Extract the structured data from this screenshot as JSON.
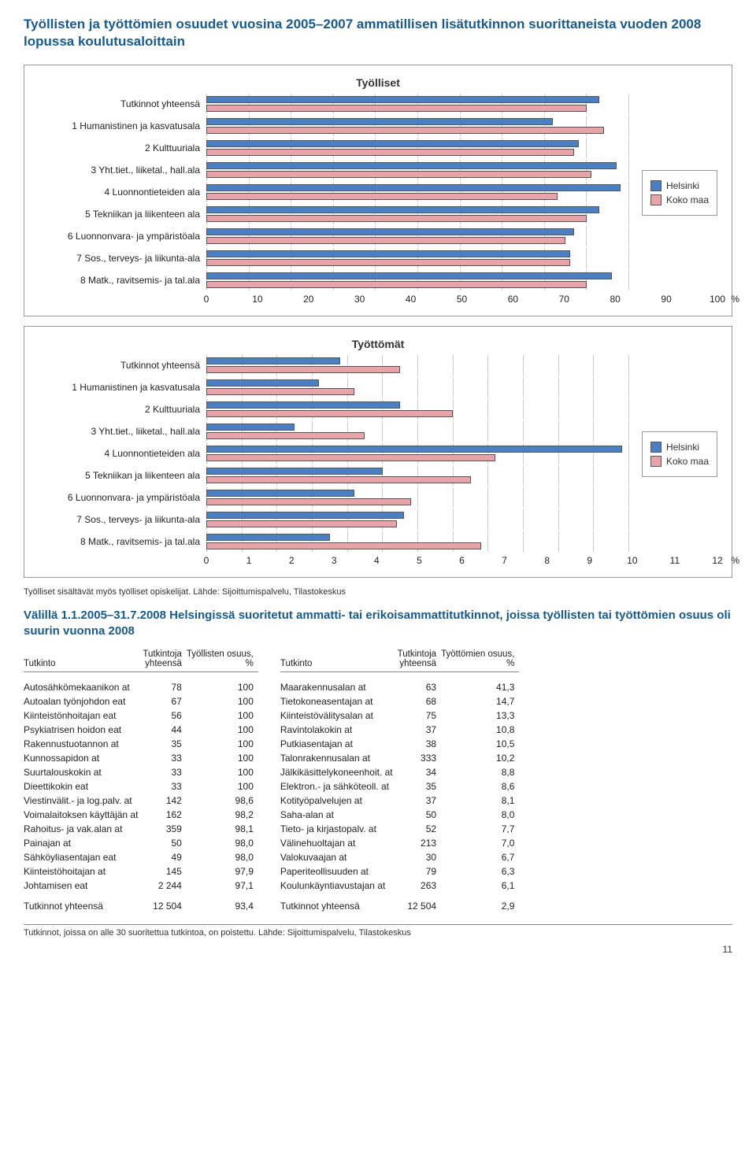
{
  "page_title": "Työllisten ja työttömien osuudet vuosina 2005–2007 ammatillisen lisätutkinnon suorittaneista vuoden 2008 lopussa koulutusaloittain",
  "colors": {
    "series_a": "#4a7fc4",
    "series_b": "#e8a4a8",
    "grid": "#cccccc",
    "border": "#999999",
    "text": "#222222",
    "heading": "#1a5a8a"
  },
  "legend": {
    "a": "Helsinki",
    "b": "Koko maa"
  },
  "chart1": {
    "title": "Työlliset",
    "xmax": 100,
    "xticks": [
      0,
      10,
      20,
      30,
      40,
      50,
      60,
      70,
      80,
      90,
      100
    ],
    "unit": "%",
    "categories": [
      "Tutkinnot yhteensä",
      "1 Humanistinen ja kasvatusala",
      "2 Kulttuuriala",
      "3 Yht.tiet., liiketal., hall.ala",
      "4 Luonnontieteiden ala",
      "5 Tekniikan ja liikenteen ala",
      "6 Luonnonvara- ja ympäristöala",
      "7 Sos., terveys- ja liikunta-ala",
      "8 Matk., ravitsemis- ja tal.ala"
    ],
    "series_a": [
      93,
      82,
      88,
      97,
      98,
      93,
      87,
      86,
      96
    ],
    "series_b": [
      90,
      94,
      87,
      91,
      83,
      90,
      85,
      86,
      90
    ]
  },
  "chart2": {
    "title": "Työttömät",
    "xmax": 12,
    "xticks": [
      0,
      1,
      2,
      3,
      4,
      5,
      6,
      7,
      8,
      9,
      10,
      11,
      12
    ],
    "unit": "%",
    "categories": [
      "Tutkinnot yhteensä",
      "1 Humanistinen ja kasvatusala",
      "2 Kulttuuriala",
      "3 Yht.tiet., liiketal., hall.ala",
      "4 Luonnontieteiden ala",
      "5 Tekniikan ja liikenteen ala",
      "6 Luonnonvara- ja ympäristöala",
      "7 Sos., terveys- ja liikunta-ala",
      "8 Matk., ravitsemis- ja tal.ala"
    ],
    "series_a": [
      3.8,
      3.2,
      5.5,
      2.5,
      11.8,
      5.0,
      4.2,
      5.6,
      3.5
    ],
    "series_b": [
      5.5,
      4.2,
      7.0,
      4.5,
      8.2,
      7.5,
      5.8,
      5.4,
      7.8
    ]
  },
  "chart_footnote": "Työlliset sisältävät myös työlliset opiskelijat. Lähde: Sijoittumispalvelu, Tilastokeskus",
  "section_heading": "Välillä 1.1.2005–31.7.2008 Helsingissä suoritetut ammatti- tai erikoisammattitutkinnot, joissa työllisten tai työttömien osuus oli suurin vuonna 2008",
  "table_left": {
    "cols": [
      "Tutkinto",
      "Tutkintoja yhteensä",
      "Työllisten osuus, %"
    ],
    "rows": [
      [
        "Autosähkömekaanikon at",
        "78",
        "100"
      ],
      [
        "Autoalan työnjohdon eat",
        "67",
        "100"
      ],
      [
        "Kiinteistönhoitajan eat",
        "56",
        "100"
      ],
      [
        "Psykiatrisen hoidon eat",
        "44",
        "100"
      ],
      [
        "Rakennustuotannon at",
        "35",
        "100"
      ],
      [
        "Kunnossapidon at",
        "33",
        "100"
      ],
      [
        "Suurtalouskokin at",
        "33",
        "100"
      ],
      [
        "Dieettikokin eat",
        "33",
        "100"
      ],
      [
        "Viestinvälit.- ja log.palv. at",
        "142",
        "98,6"
      ],
      [
        "Voimalaitoksen käyttäjän at",
        "162",
        "98,2"
      ],
      [
        "Rahoitus- ja vak.alan at",
        "359",
        "98,1"
      ],
      [
        "Painajan at",
        "50",
        "98,0"
      ],
      [
        "Sähköyliasentajan eat",
        "49",
        "98,0"
      ],
      [
        "Kiinteistöhoitajan at",
        "145",
        "97,9"
      ],
      [
        "Johtamisen eat",
        "2 244",
        "97,1"
      ]
    ],
    "total": [
      "Tutkinnot yhteensä",
      "12 504",
      "93,4"
    ]
  },
  "table_right": {
    "cols": [
      "Tutkinto",
      "Tutkintoja yhteensä",
      "Työttömien osuus, %"
    ],
    "rows": [
      [
        "Maarakennusalan at",
        "63",
        "41,3"
      ],
      [
        "Tietokoneasentajan at",
        "68",
        "14,7"
      ],
      [
        "Kiinteistövälitysalan at",
        "75",
        "13,3"
      ],
      [
        "Ravintolakokin at",
        "37",
        "10,8"
      ],
      [
        "Putkiasentajan at",
        "38",
        "10,5"
      ],
      [
        "Talonrakennusalan at",
        "333",
        "10,2"
      ],
      [
        "Jälkikäsittelykoneenhoit. at",
        "34",
        "8,8"
      ],
      [
        "Elektron.- ja sähköteoll. at",
        "35",
        "8,6"
      ],
      [
        "Kotityöpalvelujen at",
        "37",
        "8,1"
      ],
      [
        "Saha-alan at",
        "50",
        "8,0"
      ],
      [
        "Tieto- ja kirjastopalv. at",
        "52",
        "7,7"
      ],
      [
        "Välinehuoltajan at",
        "213",
        "7,0"
      ],
      [
        "Valokuvaajan at",
        "30",
        "6,7"
      ],
      [
        "Paperiteollisuuden at",
        "79",
        "6,3"
      ],
      [
        "Koulunkäyntiavustajan at",
        "263",
        "6,1"
      ]
    ],
    "total": [
      "Tutkinnot yhteensä",
      "12 504",
      "2,9"
    ]
  },
  "bottom_note": "Tutkinnot, joissa on alle 30 suoritettua tutkintoa, on poistettu. Lähde: Sijoittumispalvelu, Tilastokeskus",
  "page_number": "11"
}
